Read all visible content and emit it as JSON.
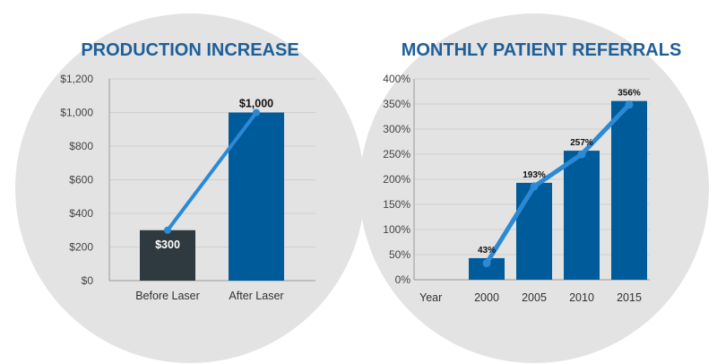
{
  "colors": {
    "circle_bg": "#e3e3e3",
    "bar_primary": "#005b9a",
    "bar_before": "#2f3a40",
    "trend_line": "#2b8ad6",
    "title": "#1f5f99"
  },
  "chart_data": [
    {
      "type": "bar",
      "title": "PRODUCTION INCREASE",
      "xlabel": "",
      "ylabel": "",
      "categories": [
        "Before Laser",
        "After Laser"
      ],
      "values": [
        300,
        1000
      ],
      "data_labels": [
        "$300",
        "$1,000"
      ],
      "ylim": [
        0,
        1200
      ],
      "yticks": [
        0,
        200,
        400,
        600,
        800,
        1000,
        1200
      ],
      "ytick_labels": [
        "$0",
        "$200",
        "$400",
        "$600",
        "$800",
        "$1,000",
        "$1,200"
      ],
      "overlay_line": true,
      "grid": true
    },
    {
      "type": "bar",
      "title": "MONTHLY PATIENT REFERRALS",
      "xlabel": "Year",
      "ylabel": "",
      "categories": [
        "2000",
        "2005",
        "2010",
        "2015"
      ],
      "values": [
        43,
        193,
        257,
        356
      ],
      "data_labels": [
        "43%",
        "193%",
        "257%",
        "356%"
      ],
      "ylim": [
        0,
        400
      ],
      "yticks": [
        0,
        50,
        100,
        150,
        200,
        250,
        300,
        350,
        400
      ],
      "ytick_labels": [
        "0%",
        "50%",
        "100%",
        "150%",
        "200%",
        "250%",
        "300%",
        "350%",
        "400%"
      ],
      "overlay_line": true,
      "grid": true
    }
  ]
}
